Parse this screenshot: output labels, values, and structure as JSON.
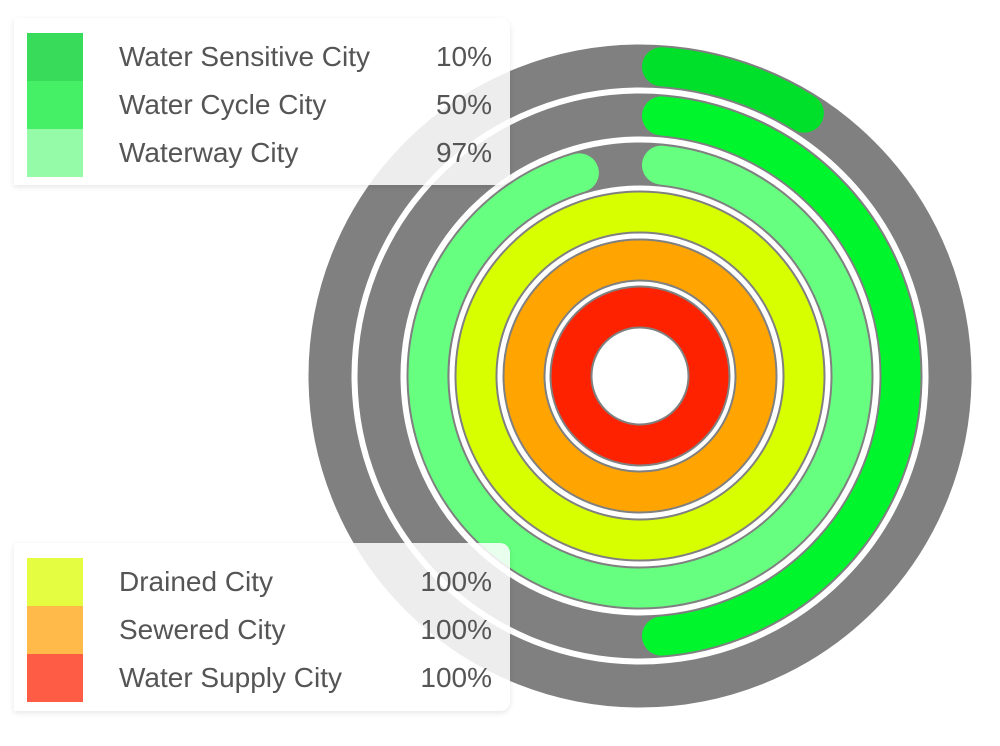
{
  "chart_data": {
    "type": "radial-bar",
    "series": [
      {
        "name": "Water Sensitive City",
        "value": 10,
        "value_label": "10%",
        "bar_color": "#00e02a",
        "legend_color": "#39db5a"
      },
      {
        "name": "Water Cycle City",
        "value": 50,
        "value_label": "50%",
        "bar_color": "#00f52d",
        "legend_color": "#45f066"
      },
      {
        "name": "Waterway City",
        "value": 97,
        "value_label": "97%",
        "bar_color": "#66ff80",
        "legend_color": "#96fba8"
      },
      {
        "name": "Drained City",
        "value": 100,
        "value_label": "100%",
        "bar_color": "#d8ff00",
        "legend_color": "#e4fd40"
      },
      {
        "name": "Sewered City",
        "value": 100,
        "value_label": "100%",
        "bar_color": "#ffa400",
        "legend_color": "#ffba4a"
      },
      {
        "name": "Water Supply City",
        "value": 100,
        "value_label": "100%",
        "bar_color": "#ff2200",
        "legend_color": "#ff5c45"
      }
    ],
    "track_color": "#808080",
    "max": 100,
    "legends": {
      "top": [
        "Water Sensitive City",
        "Water Cycle City",
        "Waterway City"
      ],
      "bottom": [
        "Drained City",
        "Sewered City",
        "Water Supply City"
      ]
    }
  }
}
